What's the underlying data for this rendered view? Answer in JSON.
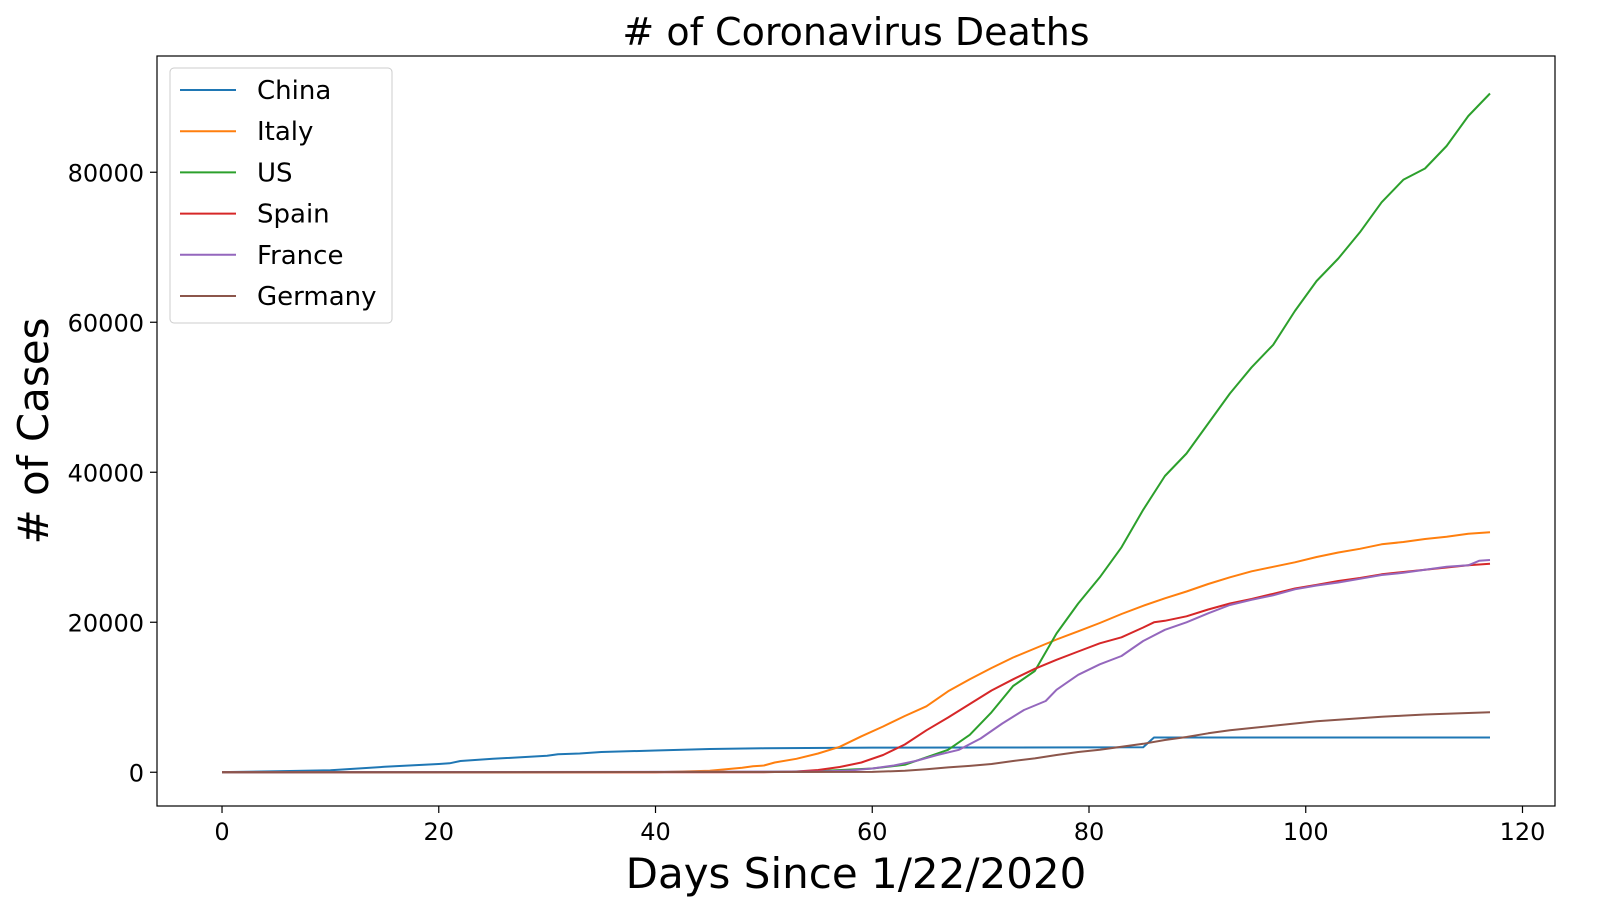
{
  "chart_data": {
    "type": "line",
    "title": "# of Coronavirus Deaths",
    "xlabel": "Days Since 1/22/2020",
    "ylabel": "# of Cases",
    "xlim": [
      -6,
      123
    ],
    "ylim": [
      -4500,
      95500
    ],
    "x_ticks": [
      0,
      20,
      40,
      60,
      80,
      100,
      120
    ],
    "y_ticks": [
      0,
      20000,
      40000,
      60000,
      80000
    ],
    "grid": false,
    "legend_position": "top-left",
    "series": [
      {
        "name": "China",
        "color": "#1f77b4",
        "points": [
          [
            0,
            17
          ],
          [
            5,
            132
          ],
          [
            10,
            259
          ],
          [
            15,
            722
          ],
          [
            20,
            1100
          ],
          [
            21,
            1200
          ],
          [
            22,
            1500
          ],
          [
            25,
            1800
          ],
          [
            30,
            2200
          ],
          [
            31,
            2400
          ],
          [
            33,
            2500
          ],
          [
            35,
            2700
          ],
          [
            40,
            2900
          ],
          [
            45,
            3100
          ],
          [
            50,
            3200
          ],
          [
            60,
            3280
          ],
          [
            70,
            3300
          ],
          [
            80,
            3320
          ],
          [
            85,
            3340
          ],
          [
            86,
            4630
          ],
          [
            117,
            4634
          ]
        ]
      },
      {
        "name": "Italy",
        "color": "#ff7f0e",
        "points": [
          [
            0,
            0
          ],
          [
            40,
            0
          ],
          [
            45,
            200
          ],
          [
            48,
            600
          ],
          [
            49,
            800
          ],
          [
            50,
            900
          ],
          [
            51,
            1300
          ],
          [
            53,
            1800
          ],
          [
            55,
            2500
          ],
          [
            57,
            3400
          ],
          [
            59,
            4800
          ],
          [
            61,
            6100
          ],
          [
            63,
            7500
          ],
          [
            65,
            8800
          ],
          [
            67,
            10800
          ],
          [
            69,
            12400
          ],
          [
            71,
            13900
          ],
          [
            73,
            15300
          ],
          [
            75,
            16500
          ],
          [
            77,
            17700
          ],
          [
            79,
            18800
          ],
          [
            81,
            19900
          ],
          [
            83,
            21100
          ],
          [
            85,
            22200
          ],
          [
            87,
            23200
          ],
          [
            89,
            24100
          ],
          [
            91,
            25100
          ],
          [
            93,
            26000
          ],
          [
            95,
            26800
          ],
          [
            97,
            27400
          ],
          [
            99,
            28000
          ],
          [
            101,
            28700
          ],
          [
            103,
            29300
          ],
          [
            105,
            29800
          ],
          [
            107,
            30400
          ],
          [
            109,
            30700
          ],
          [
            111,
            31100
          ],
          [
            113,
            31400
          ],
          [
            115,
            31800
          ],
          [
            117,
            32000
          ]
        ]
      },
      {
        "name": "US",
        "color": "#2ca02c",
        "points": [
          [
            0,
            0
          ],
          [
            50,
            50
          ],
          [
            55,
            150
          ],
          [
            60,
            500
          ],
          [
            63,
            1000
          ],
          [
            65,
            2000
          ],
          [
            67,
            3000
          ],
          [
            69,
            5000
          ],
          [
            71,
            8000
          ],
          [
            73,
            11500
          ],
          [
            75,
            13500
          ],
          [
            77,
            18500
          ],
          [
            79,
            22500
          ],
          [
            81,
            26000
          ],
          [
            83,
            30000
          ],
          [
            85,
            35000
          ],
          [
            87,
            39500
          ],
          [
            89,
            42500
          ],
          [
            91,
            46500
          ],
          [
            93,
            50500
          ],
          [
            95,
            54000
          ],
          [
            97,
            57000
          ],
          [
            99,
            61500
          ],
          [
            101,
            65500
          ],
          [
            103,
            68500
          ],
          [
            105,
            72000
          ],
          [
            107,
            76000
          ],
          [
            109,
            79000
          ],
          [
            111,
            80500
          ],
          [
            113,
            83500
          ],
          [
            115,
            87500
          ],
          [
            117,
            90500
          ]
        ]
      },
      {
        "name": "Spain",
        "color": "#d62728",
        "points": [
          [
            0,
            0
          ],
          [
            50,
            0
          ],
          [
            53,
            100
          ],
          [
            55,
            300
          ],
          [
            57,
            700
          ],
          [
            59,
            1300
          ],
          [
            61,
            2300
          ],
          [
            63,
            3700
          ],
          [
            65,
            5600
          ],
          [
            67,
            7300
          ],
          [
            69,
            9100
          ],
          [
            71,
            10900
          ],
          [
            73,
            12400
          ],
          [
            75,
            13800
          ],
          [
            77,
            15000
          ],
          [
            79,
            16100
          ],
          [
            81,
            17200
          ],
          [
            83,
            18000
          ],
          [
            85,
            19300
          ],
          [
            86,
            20000
          ],
          [
            87,
            20200
          ],
          [
            89,
            20800
          ],
          [
            91,
            21700
          ],
          [
            93,
            22500
          ],
          [
            95,
            23100
          ],
          [
            97,
            23800
          ],
          [
            99,
            24500
          ],
          [
            101,
            25000
          ],
          [
            103,
            25500
          ],
          [
            105,
            25900
          ],
          [
            107,
            26400
          ],
          [
            109,
            26700
          ],
          [
            111,
            27000
          ],
          [
            113,
            27300
          ],
          [
            115,
            27600
          ],
          [
            117,
            27800
          ]
        ]
      },
      {
        "name": "France",
        "color": "#9467bd",
        "points": [
          [
            0,
            0
          ],
          [
            55,
            80
          ],
          [
            58,
            250
          ],
          [
            60,
            500
          ],
          [
            62,
            900
          ],
          [
            64,
            1500
          ],
          [
            66,
            2300
          ],
          [
            68,
            3000
          ],
          [
            70,
            4500
          ],
          [
            72,
            6500
          ],
          [
            74,
            8300
          ],
          [
            76,
            9500
          ],
          [
            77,
            11000
          ],
          [
            78,
            12000
          ],
          [
            79,
            13000
          ],
          [
            81,
            14400
          ],
          [
            83,
            15500
          ],
          [
            84,
            16500
          ],
          [
            85,
            17500
          ],
          [
            87,
            19000
          ],
          [
            89,
            20000
          ],
          [
            91,
            21200
          ],
          [
            93,
            22300
          ],
          [
            95,
            23000
          ],
          [
            97,
            23600
          ],
          [
            99,
            24400
          ],
          [
            101,
            24900
          ],
          [
            103,
            25300
          ],
          [
            105,
            25800
          ],
          [
            107,
            26300
          ],
          [
            109,
            26600
          ],
          [
            111,
            27000
          ],
          [
            113,
            27400
          ],
          [
            115,
            27600
          ],
          [
            116,
            28200
          ],
          [
            117,
            28300
          ]
        ]
      },
      {
        "name": "Germany",
        "color": "#8c564b",
        "points": [
          [
            0,
            0
          ],
          [
            60,
            50
          ],
          [
            63,
            200
          ],
          [
            65,
            400
          ],
          [
            67,
            650
          ],
          [
            69,
            850
          ],
          [
            71,
            1100
          ],
          [
            73,
            1500
          ],
          [
            75,
            1850
          ],
          [
            77,
            2300
          ],
          [
            79,
            2700
          ],
          [
            81,
            3000
          ],
          [
            83,
            3400
          ],
          [
            85,
            3800
          ],
          [
            87,
            4300
          ],
          [
            89,
            4700
          ],
          [
            91,
            5200
          ],
          [
            93,
            5600
          ],
          [
            95,
            5900
          ],
          [
            97,
            6200
          ],
          [
            99,
            6500
          ],
          [
            101,
            6800
          ],
          [
            103,
            7000
          ],
          [
            105,
            7200
          ],
          [
            107,
            7400
          ],
          [
            109,
            7550
          ],
          [
            111,
            7700
          ],
          [
            113,
            7800
          ],
          [
            115,
            7900
          ],
          [
            117,
            8000
          ]
        ]
      }
    ]
  }
}
